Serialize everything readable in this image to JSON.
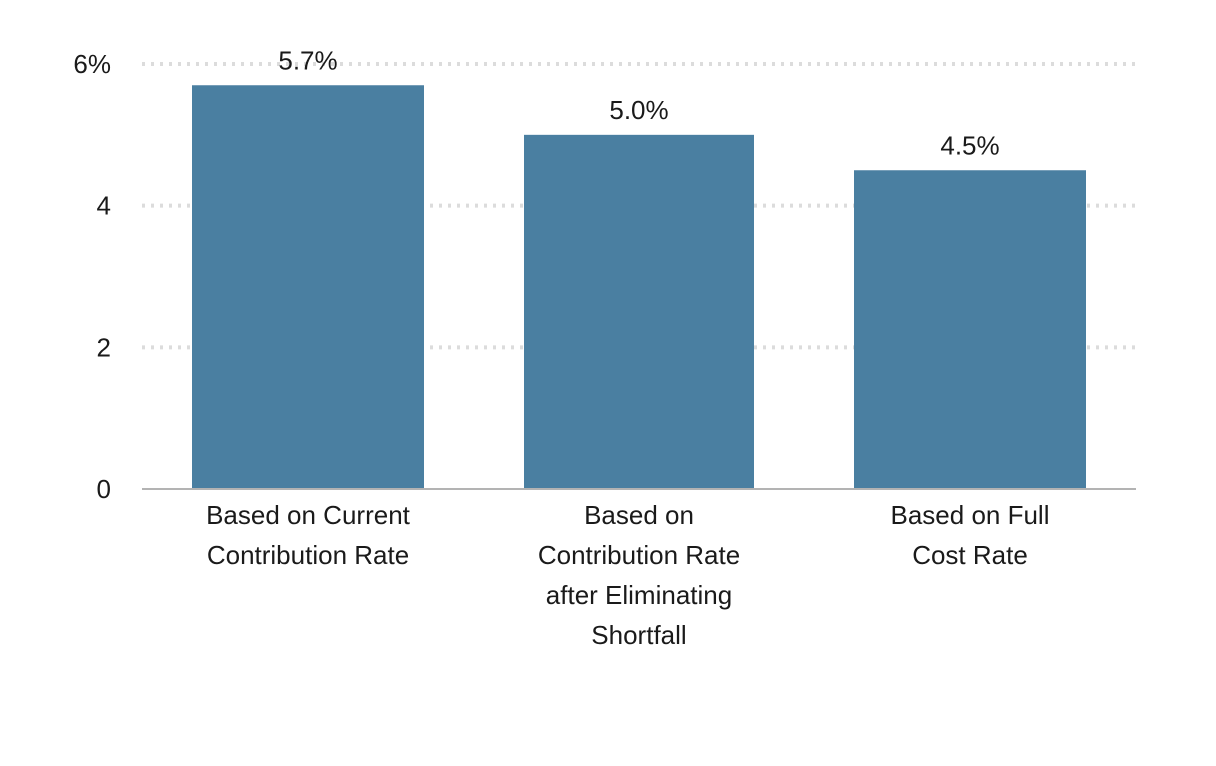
{
  "chart_data": {
    "type": "bar",
    "categories": [
      [
        "Based on Current",
        "Contribution Rate"
      ],
      [
        "Based on",
        "Contribution Rate",
        "after Eliminating",
        "Shortfall"
      ],
      [
        "Based on Full",
        "Cost Rate"
      ]
    ],
    "values": [
      5.7,
      5.0,
      4.5
    ],
    "value_labels": [
      "5.7%",
      "5.0%",
      "4.5%"
    ],
    "y_ticks": [
      {
        "value": 0,
        "label": "0"
      },
      {
        "value": 2,
        "label": "2"
      },
      {
        "value": 4,
        "label": "4"
      },
      {
        "value": 6,
        "label": "6%"
      }
    ],
    "ylim": [
      0,
      6
    ],
    "grid": true,
    "bar_color": "#4a7fa1",
    "grid_color": "#dcdcdc",
    "axis_color": "#b3b3b3"
  }
}
